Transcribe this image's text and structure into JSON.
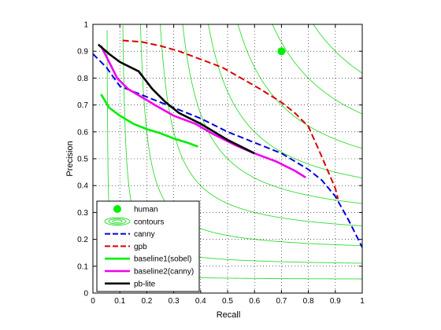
{
  "chart_data": {
    "type": "line",
    "xlabel": "Recall",
    "ylabel": "Precision",
    "xlim": [
      0,
      1
    ],
    "ylim": [
      0,
      1
    ],
    "grid": true,
    "legend_placement": "bottom-left",
    "x_ticks": [
      "0",
      "0.1",
      "0.2",
      "0.3",
      "0.4",
      "0.5",
      "0.6",
      "0.7",
      "0.8",
      "0.9",
      "1"
    ],
    "y_ticks": [
      "0",
      "0.1",
      "0.2",
      "0.3",
      "0.4",
      "0.5",
      "0.6",
      "0.7",
      "0.8",
      "0.9",
      "1"
    ],
    "human_point": {
      "name": "human",
      "x": 0.7,
      "y": 0.9,
      "color": "#00ee00"
    },
    "contours": {
      "name": "contours",
      "color": "#33dd33",
      "f_levels": [
        0.1,
        0.2,
        0.3,
        0.4,
        0.5,
        0.6,
        0.7,
        0.8,
        0.9
      ]
    },
    "series": [
      {
        "name": "canny",
        "color": "#0000dd",
        "style": "dashed",
        "x": [
          0.0,
          0.05,
          0.1,
          0.2,
          0.3,
          0.4,
          0.5,
          0.6,
          0.7,
          0.8,
          0.85,
          0.9,
          0.95,
          1.0
        ],
        "y": [
          0.89,
          0.84,
          0.77,
          0.73,
          0.69,
          0.65,
          0.6,
          0.56,
          0.52,
          0.46,
          0.42,
          0.36,
          0.27,
          0.17
        ]
      },
      {
        "name": "gpb",
        "color": "#dd0000",
        "style": "dashed",
        "x": [
          0.11,
          0.18,
          0.25,
          0.32,
          0.4,
          0.48,
          0.55,
          0.62,
          0.7,
          0.75,
          0.8,
          0.84,
          0.87,
          0.9,
          0.91
        ],
        "y": [
          0.94,
          0.935,
          0.92,
          0.9,
          0.87,
          0.84,
          0.8,
          0.76,
          0.71,
          0.67,
          0.62,
          0.53,
          0.46,
          0.39,
          0.35
        ]
      },
      {
        "name": "baseline1(sobel)",
        "color": "#00ee00",
        "style": "solid",
        "x": [
          0.03,
          0.06,
          0.1,
          0.15,
          0.2,
          0.25,
          0.3,
          0.35,
          0.39
        ],
        "y": [
          0.74,
          0.69,
          0.66,
          0.63,
          0.61,
          0.595,
          0.575,
          0.56,
          0.545
        ]
      },
      {
        "name": "baseline2(canny)",
        "color": "#ee00ee",
        "style": "solid",
        "x": [
          0.03,
          0.06,
          0.09,
          0.13,
          0.18,
          0.23,
          0.3,
          0.38,
          0.45,
          0.53,
          0.6,
          0.68,
          0.75,
          0.79
        ],
        "y": [
          0.92,
          0.86,
          0.8,
          0.76,
          0.73,
          0.7,
          0.66,
          0.63,
          0.59,
          0.55,
          0.52,
          0.49,
          0.455,
          0.43
        ]
      },
      {
        "name": "pb-lite",
        "color": "#000000",
        "style": "solid",
        "x": [
          0.02,
          0.06,
          0.1,
          0.17,
          0.22,
          0.27,
          0.32,
          0.4,
          0.5,
          0.6
        ],
        "y": [
          0.925,
          0.89,
          0.86,
          0.825,
          0.76,
          0.71,
          0.67,
          0.63,
          0.57,
          0.52
        ]
      }
    ],
    "legend_order": [
      "human",
      "contours",
      "canny",
      "gpb",
      "baseline1(sobel)",
      "baseline2(canny)",
      "pb-lite"
    ]
  }
}
